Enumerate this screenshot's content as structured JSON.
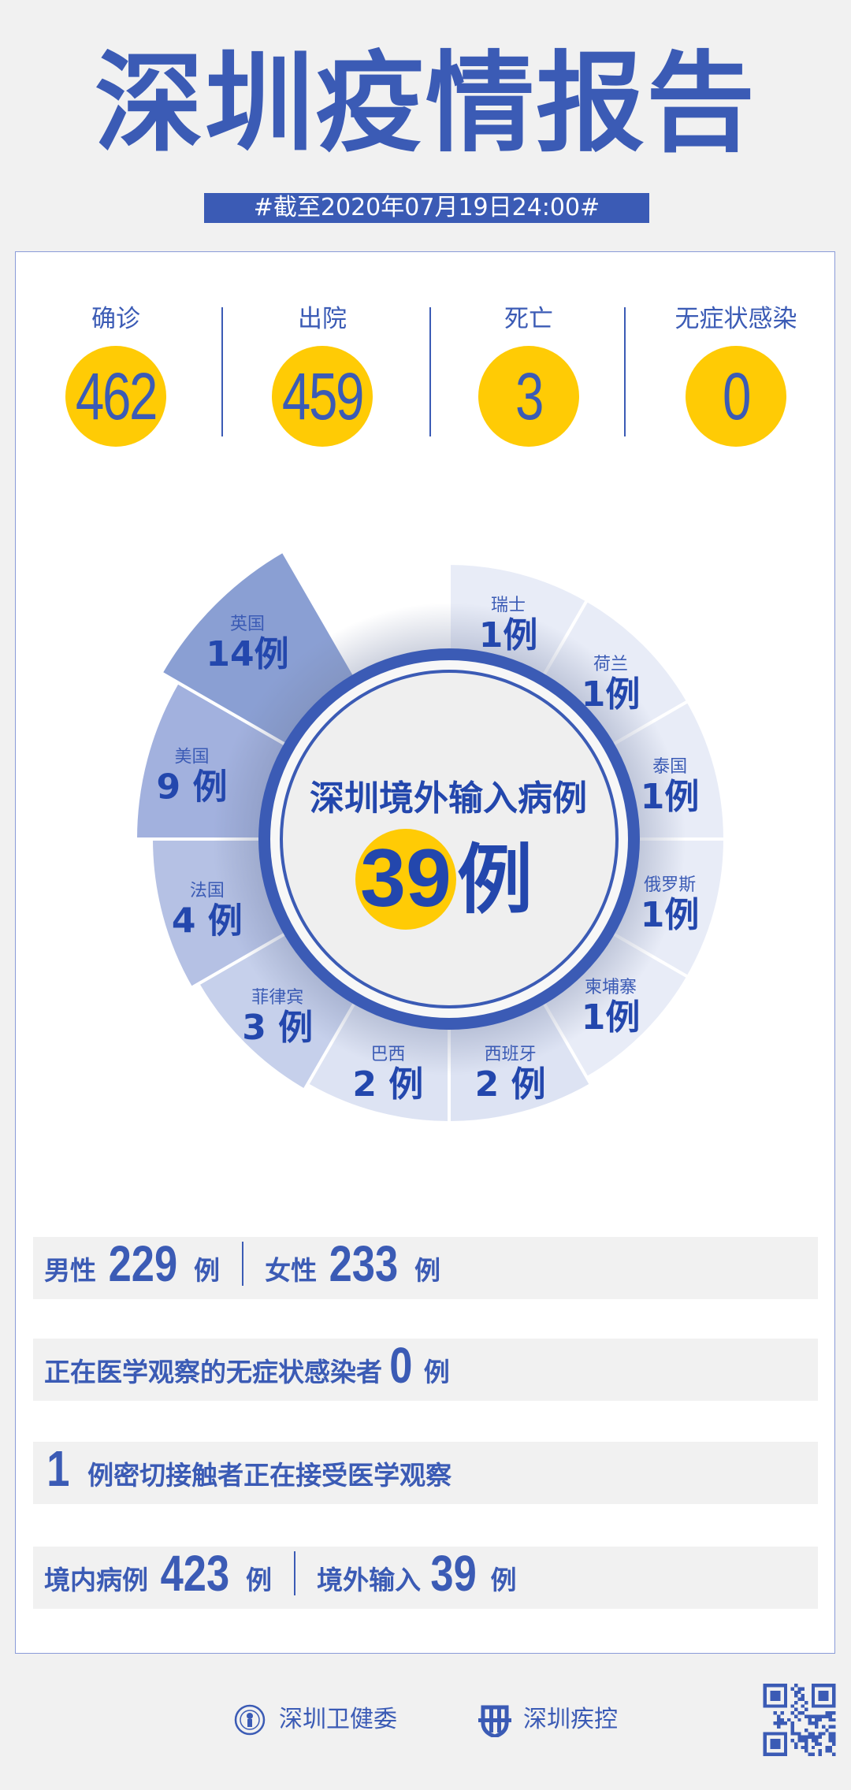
{
  "header": {
    "title": "深圳疫情报告",
    "date_banner": "#截至2020年07月19日24:00#"
  },
  "stats": [
    {
      "label": "确诊",
      "value": "462"
    },
    {
      "label": "出院",
      "value": "459"
    },
    {
      "label": "死亡",
      "value": "3"
    },
    {
      "label": "无症状感染",
      "value": "0"
    }
  ],
  "center": {
    "title": "深圳境外输入病例",
    "value": "39",
    "unit": "例"
  },
  "chart_data": {
    "type": "pie",
    "subtype": "polar-area",
    "unit": "例",
    "categories": [
      "瑞士",
      "荷兰",
      "泰国",
      "俄罗斯",
      "柬埔寨",
      "西班牙",
      "巴西",
      "菲律宾",
      "法国",
      "美国",
      "英国"
    ],
    "values": [
      1,
      1,
      1,
      1,
      1,
      2,
      2,
      3,
      4,
      9,
      14
    ],
    "total": 39
  },
  "rows": {
    "gender": {
      "male_label": "男性",
      "male_value": "229",
      "female_label": "女性",
      "female_value": "233",
      "unit": "例"
    },
    "asymptomatic": {
      "label": "正在医学观察的无症状感染者",
      "value": "0",
      "unit": "例"
    },
    "contacts": {
      "value": "1",
      "label": "例密切接触者正在接受医学观察"
    },
    "origin": {
      "local_label": "境内病例",
      "local_value": "423",
      "imported_label": "境外输入",
      "imported_value": "39",
      "unit": "例"
    }
  },
  "footer": {
    "org1": "深圳卫健委",
    "org2": "深圳疾控"
  },
  "colors": {
    "primary": "#3b5bb5",
    "accent": "#ffcb05",
    "background": "#f1f1f1"
  }
}
